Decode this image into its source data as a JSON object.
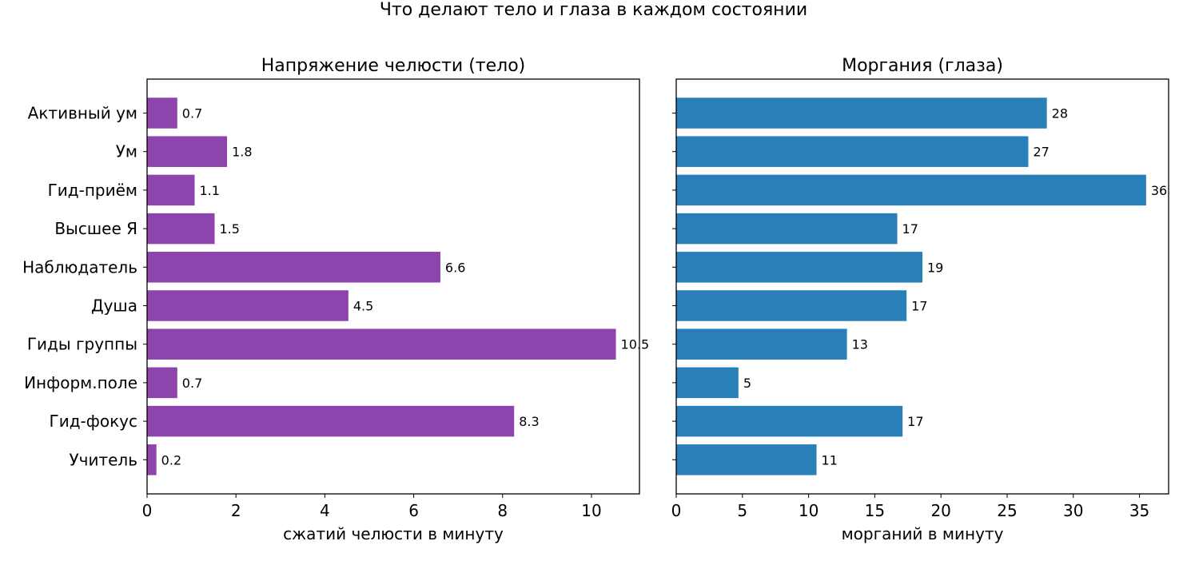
{
  "figure": {
    "title": "Что делают тело и глаза в каждом состоянии"
  },
  "chart_data": [
    {
      "type": "bar",
      "orientation": "horizontal",
      "title": "Напряжение челюсти (тело)",
      "xlabel": "сжатий челюсти в минуту",
      "ylabel": "",
      "categories": [
        "Активный ум",
        "Ум",
        "Гид-приём",
        "Высшее Я",
        "Наблюдатель",
        "Душа",
        "Гиды группы",
        "Информ.поле",
        "Гид-фокус",
        "Учитель"
      ],
      "values": [
        0.68,
        1.8,
        1.07,
        1.52,
        6.6,
        4.53,
        10.55,
        0.68,
        8.26,
        0.21
      ],
      "value_labels": [
        "0.7",
        "1.8",
        "1.1",
        "1.5",
        "6.6",
        "4.5",
        "10.5",
        "0.7",
        "8.3",
        "0.2"
      ],
      "xlim": [
        0,
        11.08
      ],
      "xticks": [
        0,
        2,
        4,
        6,
        8,
        10
      ],
      "color": "#8e44ad",
      "show_y_tick_labels": true,
      "grid": false
    },
    {
      "type": "bar",
      "orientation": "horizontal",
      "title": "Моргания (глаза)",
      "xlabel": "морганий в минуту",
      "ylabel": "",
      "categories": [
        "Активный ум",
        "Ум",
        "Гид-приём",
        "Высшее Я",
        "Наблюдатель",
        "Душа",
        "Гиды группы",
        "Информ.поле",
        "Гид-фокус",
        "Учитель"
      ],
      "values": [
        28.0,
        26.6,
        35.5,
        16.7,
        18.6,
        17.4,
        12.9,
        4.7,
        17.1,
        10.6
      ],
      "value_labels": [
        "28",
        "27",
        "36",
        "17",
        "19",
        "17",
        "13",
        "5",
        "17",
        "11"
      ],
      "xlim": [
        0,
        37.2
      ],
      "xticks": [
        0,
        5,
        10,
        15,
        20,
        25,
        30,
        35
      ],
      "color": "#2980b9",
      "show_y_tick_labels": false,
      "grid": false
    }
  ]
}
